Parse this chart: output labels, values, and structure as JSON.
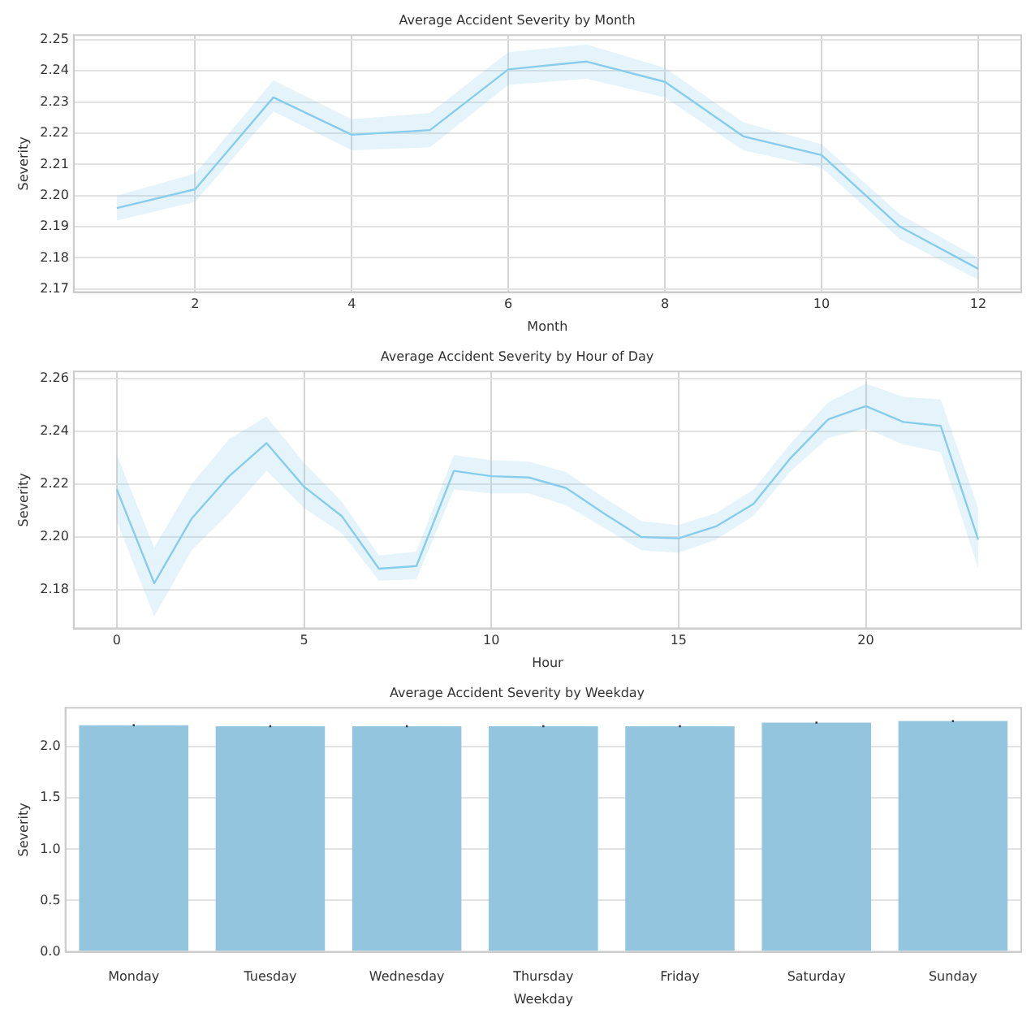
{
  "chart_data": [
    {
      "type": "line",
      "title": "Average Accident Severity by Month",
      "xlabel": "Month",
      "ylabel": "Severity",
      "x": [
        1,
        2,
        3,
        4,
        5,
        6,
        7,
        8,
        9,
        10,
        11,
        12
      ],
      "series": [
        {
          "color": "#87ceeb",
          "values": [
            2.196,
            2.202,
            2.2315,
            2.2195,
            2.221,
            2.2405,
            2.243,
            2.2365,
            2.219,
            2.213,
            2.19,
            2.1765
          ],
          "lower": [
            2.192,
            2.198,
            2.227,
            2.2145,
            2.2155,
            2.2355,
            2.2375,
            2.2315,
            2.2145,
            2.209,
            2.186,
            2.173
          ],
          "upper": [
            2.2,
            2.207,
            2.237,
            2.2245,
            2.2265,
            2.246,
            2.2485,
            2.241,
            2.2235,
            2.2165,
            2.194,
            2.18
          ]
        }
      ],
      "xlim": [
        0.45,
        12.55
      ],
      "xticks": [
        2,
        4,
        6,
        8,
        10,
        12
      ],
      "ylim": [
        2.169,
        2.2515
      ],
      "yticks": [
        {
          "value": 2.17,
          "label": "2.17"
        },
        {
          "value": 2.18,
          "label": "2.18"
        },
        {
          "value": 2.19,
          "label": "2.19"
        },
        {
          "value": 2.2,
          "label": "2.20"
        },
        {
          "value": 2.21,
          "label": "2.21"
        },
        {
          "value": 2.22,
          "label": "2.22"
        },
        {
          "value": 2.23,
          "label": "2.23"
        },
        {
          "value": 2.24,
          "label": "2.24"
        },
        {
          "value": 2.25,
          "label": "2.25"
        }
      ],
      "grid": true,
      "legend": false
    },
    {
      "type": "line",
      "title": "Average Accident Severity by Hour of Day",
      "xlabel": "Hour",
      "ylabel": "Severity",
      "x": [
        0,
        1,
        2,
        3,
        4,
        5,
        6,
        7,
        8,
        9,
        10,
        11,
        12,
        13,
        14,
        15,
        16,
        17,
        18,
        19,
        20,
        21,
        22,
        23
      ],
      "series": [
        {
          "color": "#87ceeb",
          "values": [
            2.218,
            2.1825,
            2.207,
            2.223,
            2.2355,
            2.219,
            2.208,
            2.188,
            2.189,
            2.225,
            2.223,
            2.2225,
            2.2185,
            2.209,
            2.2,
            2.1995,
            2.204,
            2.2125,
            2.23,
            2.2445,
            2.2495,
            2.2435,
            2.242,
            2.199
          ],
          "lower": [
            2.206,
            2.17,
            2.195,
            2.209,
            2.225,
            2.211,
            2.2015,
            2.1835,
            2.184,
            2.218,
            2.2165,
            2.2165,
            2.212,
            2.2035,
            2.195,
            2.194,
            2.199,
            2.208,
            2.225,
            2.2375,
            2.241,
            2.235,
            2.232,
            2.188
          ],
          "upper": [
            2.231,
            2.196,
            2.22,
            2.237,
            2.2455,
            2.228,
            2.2135,
            2.193,
            2.1945,
            2.231,
            2.229,
            2.2285,
            2.2245,
            2.215,
            2.206,
            2.2045,
            2.209,
            2.218,
            2.2355,
            2.251,
            2.258,
            2.253,
            2.252,
            2.211
          ]
        }
      ],
      "xlim": [
        -1.15,
        24.15
      ],
      "xticks": [
        0,
        5,
        10,
        15,
        20
      ],
      "ylim": [
        2.1654,
        2.2626
      ],
      "yticks": [
        {
          "value": 2.18,
          "label": "2.18"
        },
        {
          "value": 2.2,
          "label": "2.20"
        },
        {
          "value": 2.22,
          "label": "2.22"
        },
        {
          "value": 2.24,
          "label": "2.24"
        },
        {
          "value": 2.26,
          "label": "2.26"
        }
      ],
      "grid": true,
      "legend": false
    },
    {
      "type": "bar",
      "title": "Average Accident Severity by Weekday",
      "xlabel": "Weekday",
      "ylabel": "Severity",
      "categories": [
        "Monday",
        "Tuesday",
        "Wednesday",
        "Thursday",
        "Friday",
        "Saturday",
        "Sunday"
      ],
      "values": [
        2.21,
        2.2,
        2.2,
        2.2,
        2.2,
        2.235,
        2.25
      ],
      "errors": [
        0.01,
        0.01,
        0.01,
        0.01,
        0.01,
        0.01,
        0.01
      ],
      "color": "#93c6de",
      "ylim": [
        0,
        2.38
      ],
      "yticks": [
        {
          "value": 0,
          "label": "0.0"
        },
        {
          "value": 0.5,
          "label": "0.5"
        },
        {
          "value": 1,
          "label": "1.0"
        },
        {
          "value": 1.5,
          "label": "1.5"
        },
        {
          "value": 2,
          "label": "2.0"
        }
      ],
      "grid": "y",
      "legend": false
    }
  ]
}
